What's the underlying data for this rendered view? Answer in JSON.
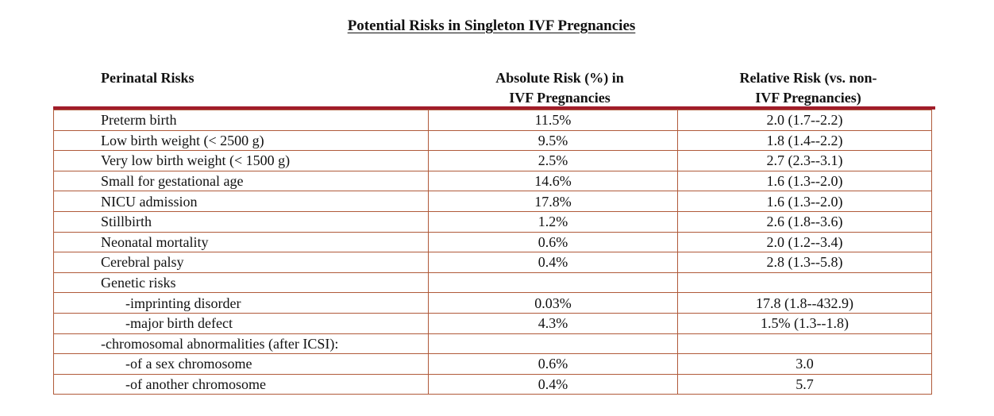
{
  "title": "Potential Risks in Singleton IVF Pregnancies",
  "headers": {
    "risk": "Perinatal Risks",
    "absolute_line1": "Absolute Risk (%) in",
    "absolute_line2": "IVF Pregnancies",
    "relative_line1": "Relative Risk (vs. non-",
    "relative_line2": "IVF Pregnancies)"
  },
  "rows": [
    {
      "risk": "Preterm birth",
      "absolute": "11.5%",
      "relative": "2.0 (1.7--2.2)"
    },
    {
      "risk": "Low birth weight (< 2500 g)",
      "absolute": "9.5%",
      "relative": "1.8 (1.4--2.2)"
    },
    {
      "risk": "Very low birth weight (< 1500 g)",
      "absolute": "2.5%",
      "relative": "2.7 (2.3--3.1)"
    },
    {
      "risk": "Small for gestational age",
      "absolute": "14.6%",
      "relative": "1.6 (1.3--2.0)"
    },
    {
      "risk": "NICU admission",
      "absolute": "17.8%",
      "relative": "1.6 (1.3--2.0)"
    },
    {
      "risk": "Stillbirth",
      "absolute": "1.2%",
      "relative": "2.6 (1.8--3.6)"
    },
    {
      "risk": "Neonatal mortality",
      "absolute": "0.6%",
      "relative": "2.0 (1.2--3.4)"
    },
    {
      "risk": "Cerebral palsy",
      "absolute": "0.4%",
      "relative": "2.8 (1.3--5.8)"
    },
    {
      "risk": "Genetic risks",
      "absolute": "",
      "relative": ""
    },
    {
      "risk": "-imprinting disorder",
      "absolute": "0.03%",
      "relative": "17.8 (1.8--432.9)"
    },
    {
      "risk": "-major birth defect",
      "absolute": "4.3%",
      "relative": "1.5% (1.3--1.8)"
    },
    {
      "risk": "-chromosomal abnormalities (after ICSI):",
      "absolute": "",
      "relative": ""
    },
    {
      "risk": "-of a sex chromosome",
      "absolute": "0.6%",
      "relative": "3.0"
    },
    {
      "risk": "-of another chromosome",
      "absolute": "0.4%",
      "relative": "5.7"
    }
  ]
}
